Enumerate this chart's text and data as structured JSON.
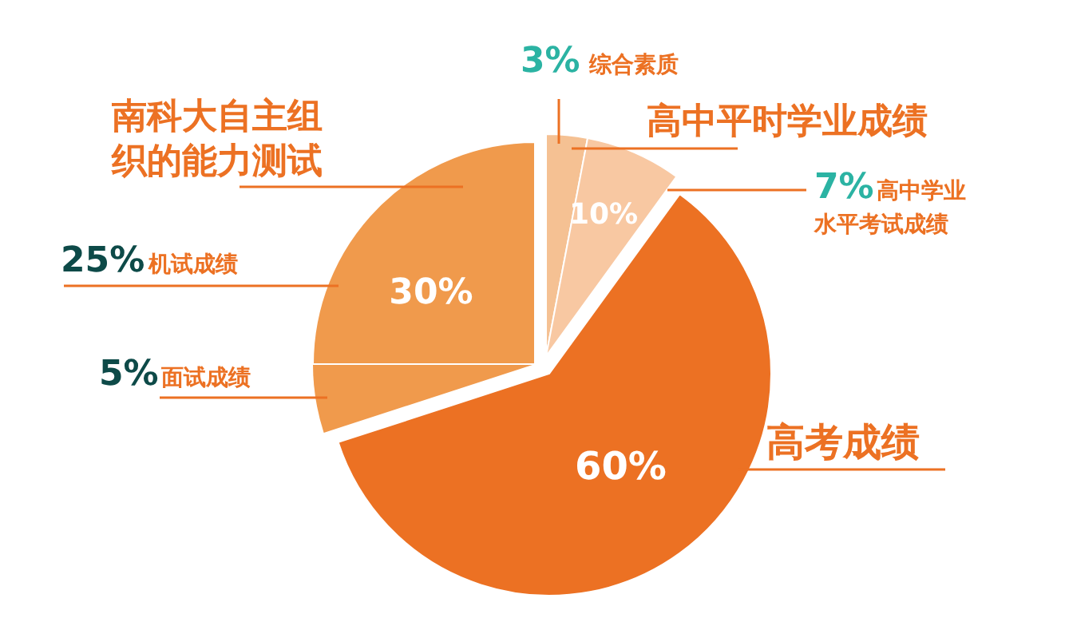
{
  "chart_data": {
    "type": "pie",
    "categories": [
      "综合素质",
      "高中学业水平考试成绩",
      "高考成绩",
      "面试成绩",
      "机试成绩"
    ],
    "values": [
      3,
      7,
      60,
      5,
      25
    ],
    "colors": [
      "#f5c193",
      "#f8c8a2",
      "#ec7123",
      "#f09a4c",
      "#f09a4c"
    ],
    "value_labels": [
      "3%",
      "7%",
      "60%",
      "5%",
      "25%"
    ],
    "annotations": [
      "南科大自主组织的能力测试",
      "高中平时学业成绩",
      "10%",
      "30%"
    ]
  }
}
